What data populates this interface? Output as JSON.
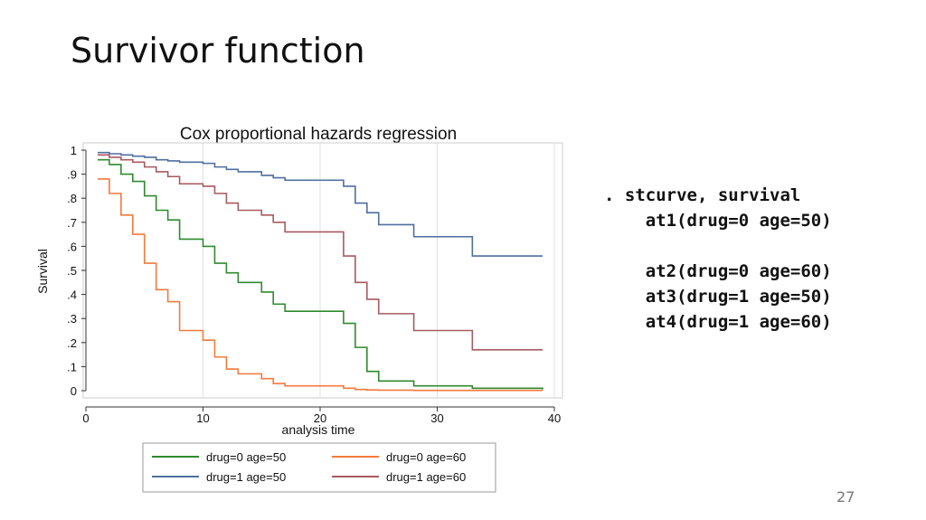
{
  "slide": {
    "title": "Survivor function",
    "page_number": "27"
  },
  "code": [
    ". stcurve, survival",
    "    at1(drug=0 age=50)",
    "",
    "    at2(drug=0 age=60)",
    "    at3(drug=1 age=50)",
    "    at4(drug=1 age=60)"
  ],
  "chart_data": {
    "type": "line",
    "step": true,
    "title": "Cox proportional hazards regression",
    "xlabel": "analysis time",
    "ylabel": "Survival",
    "xlim": [
      0,
      40
    ],
    "ylim": [
      0,
      1
    ],
    "xticks": [
      0,
      10,
      20,
      30,
      40
    ],
    "yticks": [
      0,
      0.1,
      0.2,
      0.3,
      0.4,
      0.5,
      0.6,
      0.7,
      0.8,
      0.9,
      1
    ],
    "ytick_labels": [
      "0",
      ".1",
      ".2",
      ".3",
      ".4",
      ".5",
      ".6",
      ".7",
      ".8",
      ".9",
      "1"
    ],
    "grid": true,
    "legend_position": "bottom",
    "series": [
      {
        "name": "drug=0 age=50",
        "color": "#2e8b2e",
        "x": [
          1,
          2,
          3,
          4,
          5,
          6,
          7,
          8,
          10,
          11,
          12,
          13,
          15,
          16,
          17,
          22,
          23,
          24,
          25,
          28,
          33,
          39
        ],
        "y": [
          0.96,
          0.94,
          0.9,
          0.87,
          0.81,
          0.75,
          0.71,
          0.63,
          0.6,
          0.53,
          0.49,
          0.45,
          0.41,
          0.36,
          0.33,
          0.28,
          0.18,
          0.08,
          0.04,
          0.02,
          0.01,
          0.005
        ]
      },
      {
        "name": "drug=0 age=60",
        "color": "#f47a3c",
        "x": [
          1,
          2,
          3,
          4,
          5,
          6,
          7,
          8,
          10,
          11,
          12,
          13,
          15,
          16,
          17,
          22,
          23,
          24,
          25,
          28,
          33,
          39
        ],
        "y": [
          0.88,
          0.82,
          0.73,
          0.65,
          0.53,
          0.42,
          0.37,
          0.25,
          0.21,
          0.14,
          0.09,
          0.07,
          0.05,
          0.03,
          0.02,
          0.01,
          0.005,
          0.003,
          0.002,
          0.001,
          0.001,
          0.001
        ]
      },
      {
        "name": "drug=1 age=50",
        "color": "#4f6f9e",
        "x": [
          1,
          2,
          3,
          4,
          5,
          6,
          7,
          8,
          10,
          11,
          12,
          13,
          15,
          16,
          17,
          22,
          23,
          24,
          25,
          28,
          33,
          39
        ],
        "y": [
          0.99,
          0.985,
          0.98,
          0.975,
          0.97,
          0.96,
          0.955,
          0.95,
          0.945,
          0.93,
          0.92,
          0.91,
          0.895,
          0.885,
          0.875,
          0.85,
          0.78,
          0.74,
          0.69,
          0.64,
          0.56,
          0.56
        ]
      },
      {
        "name": "drug=1 age=60",
        "color": "#a85a62",
        "x": [
          1,
          2,
          3,
          4,
          5,
          6,
          7,
          8,
          10,
          11,
          12,
          13,
          15,
          16,
          17,
          22,
          23,
          24,
          25,
          28,
          33,
          39
        ],
        "y": [
          0.98,
          0.97,
          0.96,
          0.95,
          0.93,
          0.91,
          0.89,
          0.86,
          0.85,
          0.82,
          0.78,
          0.75,
          0.73,
          0.7,
          0.66,
          0.56,
          0.45,
          0.38,
          0.32,
          0.25,
          0.17,
          0.17
        ]
      }
    ],
    "legend_order": [
      0,
      1,
      2,
      3
    ]
  }
}
